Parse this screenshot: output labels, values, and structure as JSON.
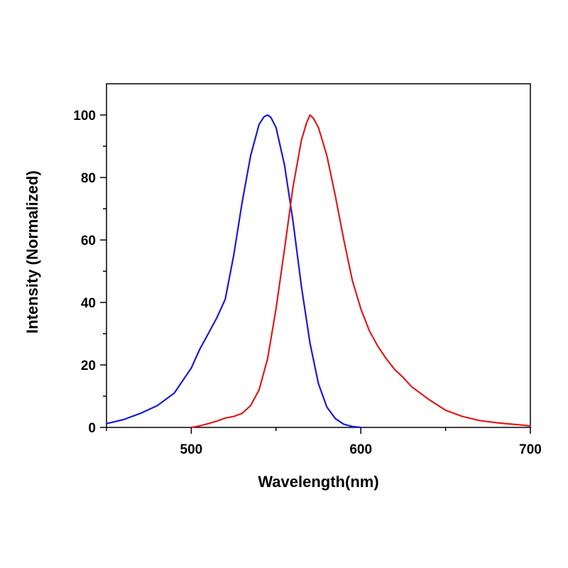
{
  "chart_data": {
    "type": "line",
    "title": "",
    "xlabel": "Wavelength(nm)",
    "ylabel": "Intensity (Normalized)",
    "xlim": [
      450,
      700
    ],
    "ylim": [
      0,
      110
    ],
    "xticks": [
      500,
      600,
      700
    ],
    "xtick_labels": [
      "500",
      "600",
      "700"
    ],
    "xminor": [
      450,
      550,
      650
    ],
    "yticks": [
      0,
      20,
      40,
      60,
      80,
      100
    ],
    "ytick_labels": [
      "0",
      "20",
      "40",
      "60",
      "80",
      "100"
    ],
    "yminor": [
      10,
      30,
      50,
      70,
      90
    ],
    "grid": false,
    "legend": "none",
    "series": [
      {
        "name": "blue curve",
        "color": "#1a1adc",
        "x": [
          450,
          460,
          470,
          480,
          490,
          500,
          505,
          510,
          515,
          520,
          525,
          530,
          535,
          540,
          543,
          545,
          547,
          550,
          555,
          560,
          565,
          570,
          575,
          580,
          585,
          590,
          595,
          600
        ],
        "y": [
          1.2,
          2.5,
          4.5,
          7,
          11,
          19,
          25,
          30,
          35,
          41,
          55,
          72,
          87,
          97,
          99.5,
          100,
          99.2,
          96,
          84,
          66,
          45,
          27,
          14,
          6.5,
          2.8,
          1,
          0.3,
          0
        ]
      },
      {
        "name": "red curve",
        "color": "#e01b1b",
        "x": [
          500,
          505,
          510,
          515,
          520,
          525,
          530,
          535,
          540,
          545,
          550,
          555,
          560,
          565,
          568,
          570,
          572,
          575,
          580,
          585,
          590,
          595,
          600,
          605,
          610,
          615,
          620,
          625,
          630,
          640,
          650,
          660,
          670,
          680,
          690,
          700
        ],
        "y": [
          0,
          0.5,
          1.2,
          2,
          3,
          3.5,
          4.5,
          7,
          12,
          22,
          38,
          57,
          77,
          92,
          97.5,
          100,
          99,
          96,
          87,
          74,
          60,
          47,
          38,
          31,
          26,
          22,
          18.5,
          16,
          13,
          9,
          5.5,
          3.5,
          2.2,
          1.5,
          1,
          0.5
        ]
      }
    ]
  }
}
